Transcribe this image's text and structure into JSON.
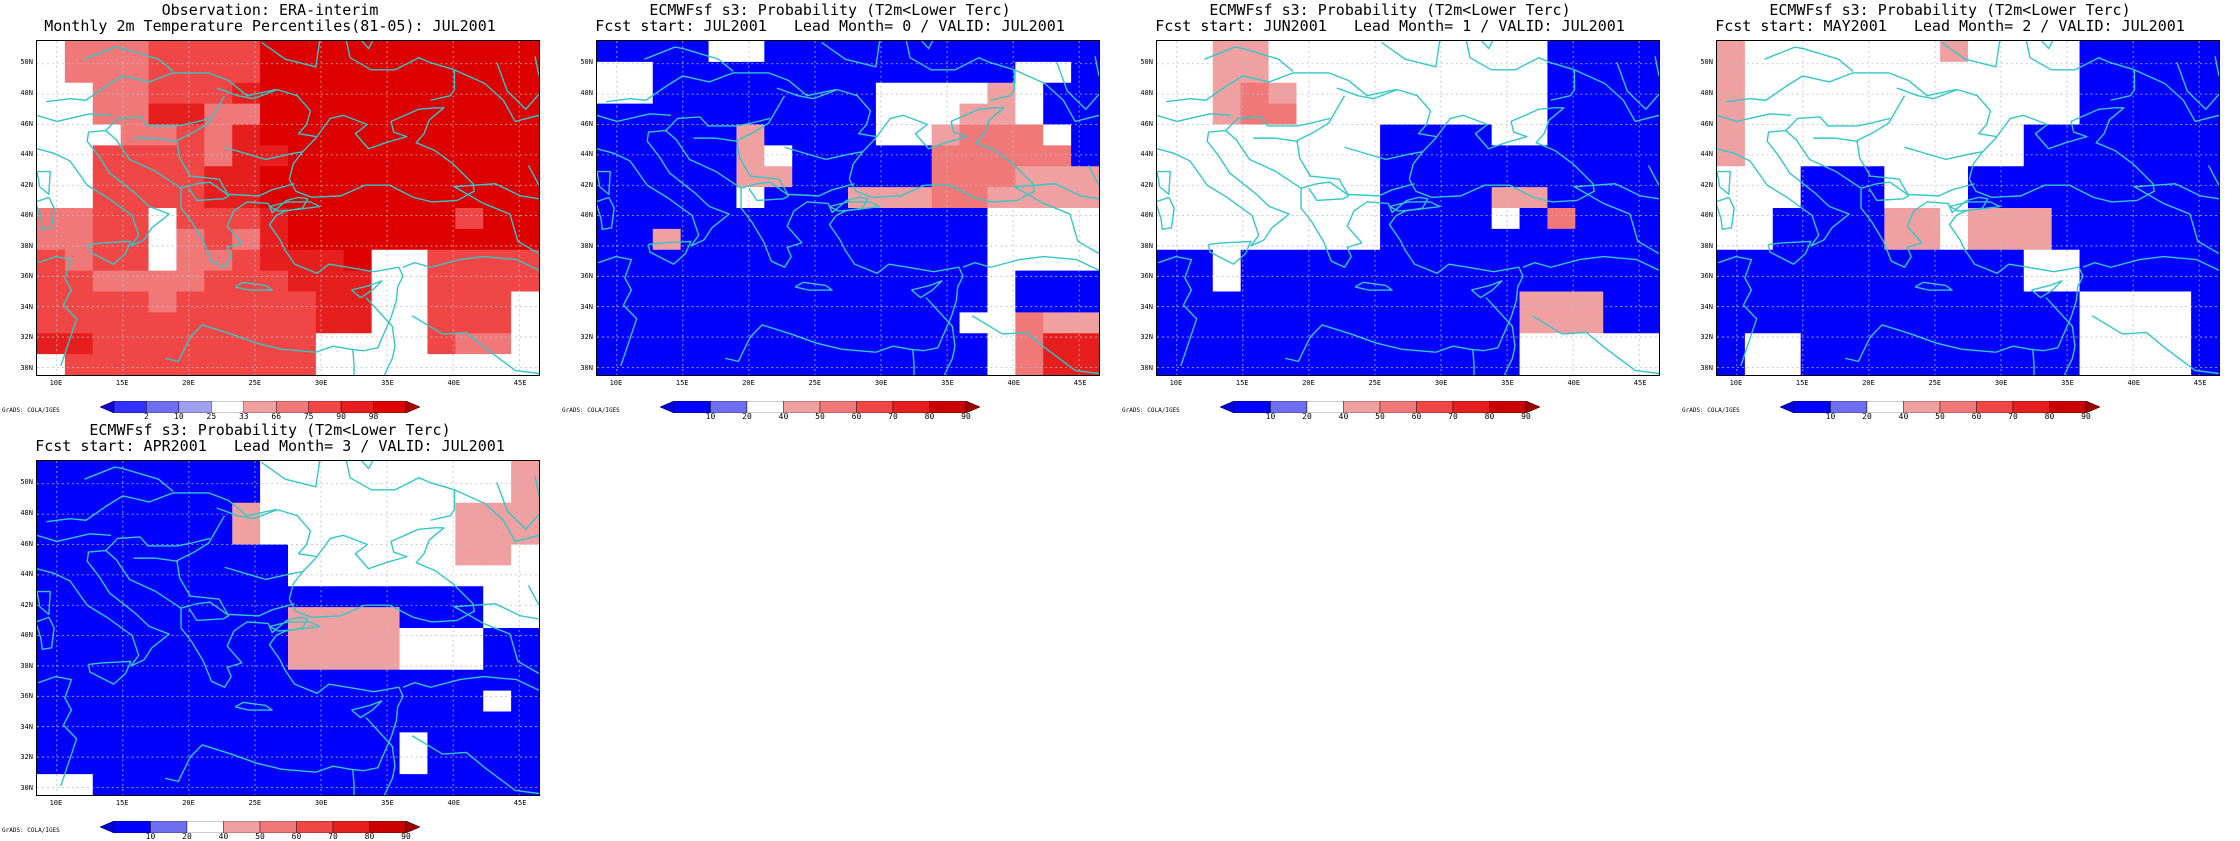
{
  "colors": {
    "coast": "#33c7c7",
    "grid": "#bdbdbd",
    "observation_scale": [
      "#1400d2",
      "#3232ff",
      "#6e6ef0",
      "#a0a0f0",
      "#ffffff",
      "#f0a0a0",
      "#f07878",
      "#f04646",
      "#e61e1e",
      "#dc0000",
      "#b40000"
    ],
    "probability_scale": [
      "#0000dc",
      "#0000ff",
      "#6e6ef0",
      "#ffffff",
      "#f0a0a0",
      "#f07878",
      "#f04646",
      "#e61e1e",
      "#c80000",
      "#a00000"
    ]
  },
  "axes": {
    "lat_labels": [
      "50N",
      "48N",
      "46N",
      "44N",
      "42N",
      "40N",
      "38N",
      "36N",
      "34N",
      "32N",
      "30N"
    ],
    "lon_labels": [
      "10E",
      "15E",
      "20E",
      "25E",
      "30E",
      "35E",
      "40E",
      "45E"
    ]
  },
  "colorbars": {
    "observation_labels": [
      "2",
      "10",
      "25",
      "33",
      "66",
      "75",
      "90",
      "98"
    ],
    "probability_labels": [
      "10",
      "20",
      "40",
      "50",
      "60",
      "70",
      "80",
      "90"
    ]
  },
  "credit": "GrADS: COLA/IGES",
  "panels": [
    {
      "title1": "Observation: ERA-interim",
      "title2": "Monthly 2m Temperature Percentiles(81-05): JUL2001",
      "scale": "observation",
      "grid": [
        "WCCCDDDDHHHHHHHHHH",
        "WCCCDDDDHHHHHHHHHH",
        "WWCCDDDEHHHHHHHHHH",
        "WWCCEECCHHHHHHHHHH",
        "WWWCCDCEHHHHHHHHHH",
        "WWDDDDCEEHHHHHHHHH",
        "WWDDDDEEHHHHHHHHHH",
        "WWDDDDEEHHHHHHHHHH",
        "CCDDWDDDEHHHHHHDHH",
        "CCDDWCDCEHHHHHHHHH",
        "DCDDWCCDEEEHWWDDDD",
        "DDCCCCDDDEEEWWDDDD",
        "DDDDCDDDDDEEWWDDDW",
        "DDDDDDDDDDEEWWDDDW",
        "EEDDDDDDDDWWWWDCCW",
        "WDDDDDDDDDWWWWWWWW"
      ]
    },
    {
      "title1": "ECMWFsf s3: Probability (T2m<Lower Terc)",
      "title2": "Fcst start: JUL2001   Lead Month= 0 / VALID: JUL2001",
      "scale": "probability",
      "grid": [
        "BBBBWWBBBBBBBBBBBB",
        "WWBBBBBBBBBBBBBWWB",
        "WWBBBBBBBBWWWWCWBB",
        "BBBBBBBBBBWWWCCWBB",
        "BBBBBCBBBBWWCDDDWB",
        "BBBBBCWBBBBBDDDDDB",
        "BBBBBCCBBBBBDDDCCC",
        "BBBBBWBBBCCCDDCCCC",
        "BBBBBBBBBBBBBBWWWW",
        "BBCBBBBBBBBBBBWWWW",
        "BBBBBBBBBBBBBBWWWW",
        "BBBBBBBBBBBBBBWBBB",
        "BBBBBBBBBBBBBBWBBB",
        "BBBBBBBBBBBBBWWDCC",
        "BBBBBBBBBBBBBBWDFF",
        "BBBBBBBBBBBBBBWDFF"
      ]
    },
    {
      "title1": "ECMWFsf s3: Probability (T2m<Lower Terc)",
      "title2": "Fcst start: JUN2001   Lead Month= 1 / VALID: JUL2001",
      "scale": "probability",
      "grid": [
        "WWCCWWWWWWWWWWBBBB",
        "WWCCWWWWWWWWWWBBBB",
        "WWCDCWWWWWWWWWBBBB",
        "WWCDDWWWWWWWWWBBBB",
        "WWWWWWWWBBBBWWBBBB",
        "WWWWWWWWBBBBBBBBBB",
        "WWWWWWWWBBBBBBBBBB",
        "WWWWWWWWBBBBCCBBBB",
        "WWWWWWWWBBBBWBDBBB",
        "WWWWWWWWBBBBBBBBBB",
        "BBWBBBBBBBBBBBBBBB",
        "BBWBBBBBBBBBBBBBBB",
        "BBBBBBBBBBBBBCCCBB",
        "BBBBBBBBBBBBBCCCBB",
        "BBBBBBBBBBBBBWWWWW",
        "BBBBBBBBBBBBBWWWWW"
      ]
    },
    {
      "title1": "ECMWFsf s3: Probability (T2m<Lower Terc)",
      "title2": "Fcst start: MAY2001   Lead Month= 2 / VALID: JUL2001",
      "scale": "probability",
      "grid": [
        "CWWWWWWWCWWWWBBBBB",
        "CWWWWWWWWWWWWBBBBB",
        "CWWWWWWWWWWWWBBBBB",
        "CWWWWWWWWWWWWBBBBB",
        "CWWWWWWWWWWBBBBBBB",
        "CWWWWWWWWWWBBBBBBB",
        "WWWBBBWWWBBBBBBBBB",
        "WWWBBBWWWBBBBBBBBB",
        "WWBBBBCCWCCCBBBBBB",
        "WWBBBBCCWCCCBBBBBB",
        "BBBBBBBBBBBWWBBBBB",
        "BBBBBBBBBBBWWBBBBB",
        "BBBBBBBBBBBBBWWWWB",
        "BBBBBBBBBBBBBWWWWB",
        "BWWBBBBBBBBBBWWWWB",
        "BWWBBBBBBBBBBWWWWB"
      ]
    },
    {
      "title1": "ECMWFsf s3: Probability (T2m<Lower Terc)",
      "title2": "Fcst start: APR2001   Lead Month= 3 / VALID: JUL2001",
      "scale": "probability",
      "grid": [
        "BBBBBBBBWWWWWWWWWC",
        "BBBBBBBBWWWWWWWWWC",
        "BBBBBBBCWWWWWWWCCC",
        "BBBBBBBCWWWWWWWCCC",
        "BBBBBBBBBWWWWWWCCW",
        "BBBBBBBBBWWWWWWWWW",
        "BBBBBBBBBBBBBBBBWW",
        "BBBBBBBBBCCCCBBBWW",
        "BBBBBBBBBCCCCWWWBB",
        "BBBBBBBBBCCCCWWWBB",
        "BBBBBBBBBBBBBBBBBB",
        "BBBBBBBBBBBBBBBBWB",
        "BBBBBBBBBBBBBBBBBB",
        "BBBBBBBBBBBBBWBBBB",
        "BBBBBBBBBBBBBWBBBB",
        "WWBBBBBBBBBBBBBBBB"
      ]
    }
  ]
}
